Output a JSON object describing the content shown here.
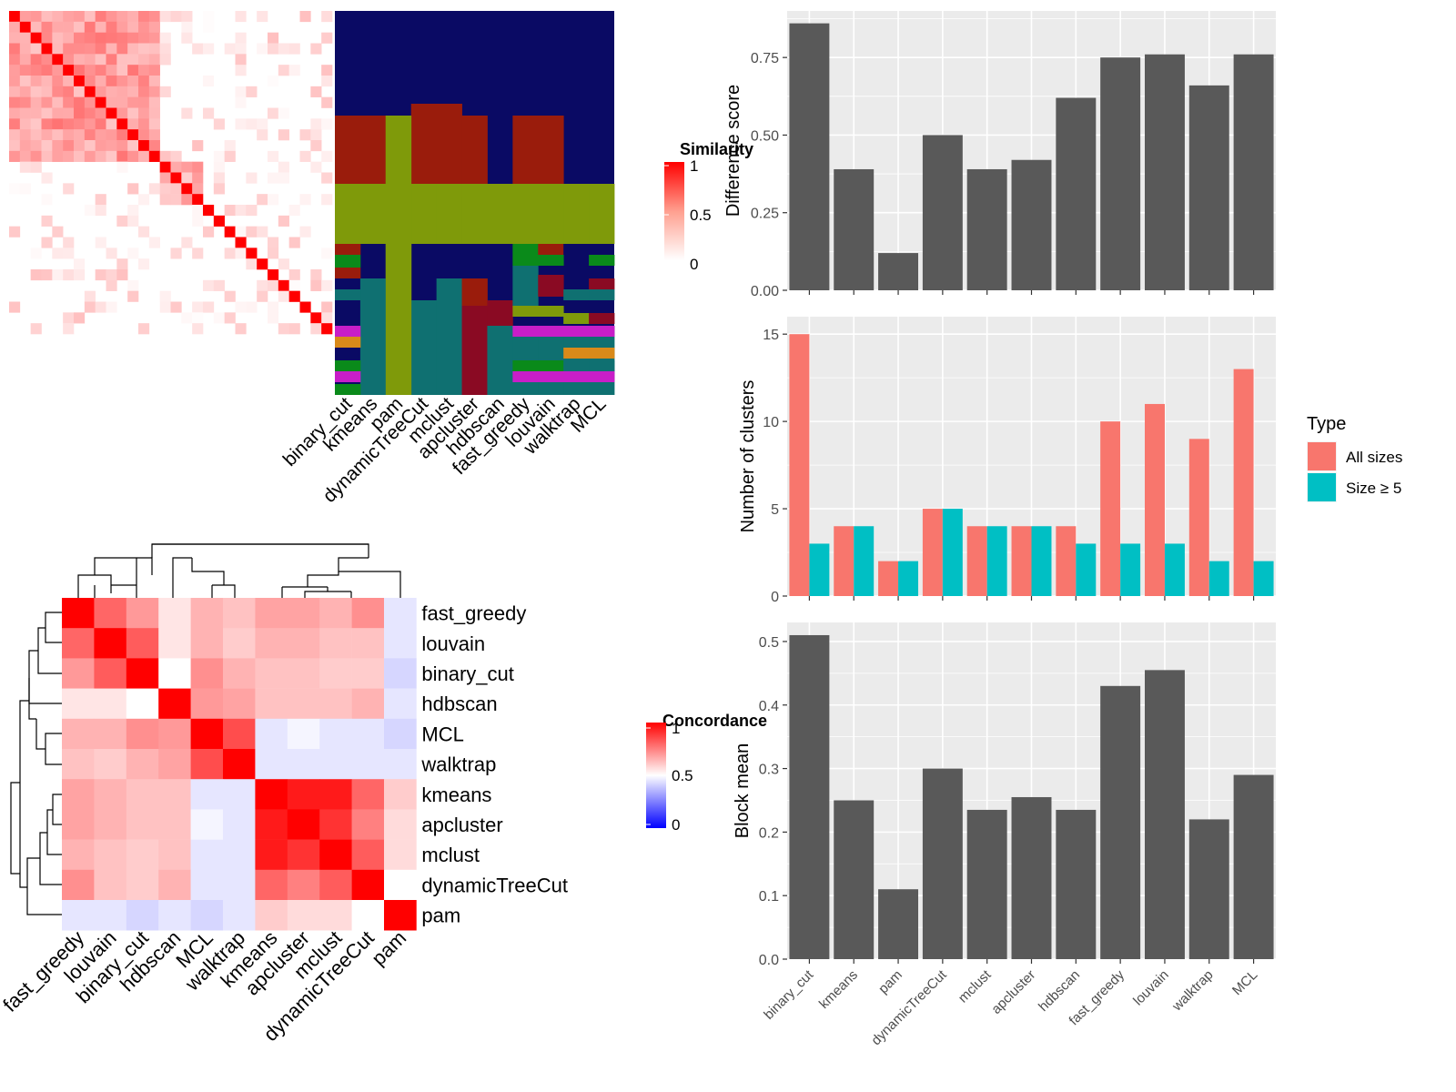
{
  "methods_order": [
    "binary_cut",
    "kmeans",
    "pam",
    "dynamicTreeCut",
    "mclust",
    "apcluster",
    "hdbscan",
    "fast_greedy",
    "louvain",
    "walktrap",
    "MCL"
  ],
  "similarity_heatmap": {
    "legend_title": "Similarity",
    "legend_ticks": [
      "1",
      "0.5",
      "0"
    ],
    "matrix_size": 30,
    "block_structure": [
      {
        "start": 0,
        "end": 13,
        "base": 0.55
      },
      {
        "start": 14,
        "end": 17,
        "base": 0.45
      }
    ]
  },
  "cluster_assignment_panel": {
    "method_labels": [
      "binary_cut",
      "kmeans",
      "pam",
      "dynamicTreeCut",
      "mclust",
      "apcluster",
      "hdbscan",
      "fast_greedy",
      "louvain",
      "walktrap",
      "MCL"
    ],
    "colors": {
      "navy": "#0a0a64",
      "darkred": "#9a1c0c",
      "olive": "#7f9a0a",
      "teal": "#0f7071",
      "green": "#0a8a1a",
      "magenta": "#c81ec8",
      "orange": "#d98a1a",
      "crimson": "#8a0a23"
    }
  },
  "concordance_heatmap": {
    "legend_title": "Concordance",
    "legend_ticks": [
      "1",
      "0.5",
      "0"
    ],
    "row_labels": [
      "fast_greedy",
      "louvain",
      "binary_cut",
      "hdbscan",
      "MCL",
      "walktrap",
      "kmeans",
      "apcluster",
      "mclust",
      "dynamicTreeCut",
      "pam"
    ],
    "col_labels": [
      "fast_greedy",
      "louvain",
      "binary_cut",
      "hdbscan",
      "MCL",
      "walktrap",
      "kmeans",
      "apcluster",
      "mclust",
      "dynamicTreeCut",
      "pam"
    ],
    "values": [
      [
        1.0,
        0.8,
        0.7,
        0.55,
        0.65,
        0.62,
        0.68,
        0.68,
        0.65,
        0.72,
        0.45
      ],
      [
        0.8,
        1.0,
        0.82,
        0.55,
        0.65,
        0.6,
        0.65,
        0.65,
        0.62,
        0.62,
        0.45
      ],
      [
        0.7,
        0.82,
        1.0,
        0.5,
        0.72,
        0.65,
        0.62,
        0.62,
        0.6,
        0.6,
        0.42
      ],
      [
        0.55,
        0.55,
        0.5,
        1.0,
        0.7,
        0.68,
        0.62,
        0.62,
        0.62,
        0.65,
        0.45
      ],
      [
        0.65,
        0.65,
        0.72,
        0.7,
        1.0,
        0.85,
        0.45,
        0.48,
        0.45,
        0.45,
        0.42
      ],
      [
        0.62,
        0.6,
        0.65,
        0.68,
        0.85,
        1.0,
        0.45,
        0.45,
        0.45,
        0.45,
        0.45
      ],
      [
        0.68,
        0.65,
        0.62,
        0.62,
        0.45,
        0.45,
        1.0,
        0.95,
        0.95,
        0.8,
        0.6
      ],
      [
        0.68,
        0.65,
        0.62,
        0.62,
        0.48,
        0.45,
        0.95,
        1.0,
        0.9,
        0.75,
        0.57
      ],
      [
        0.65,
        0.62,
        0.6,
        0.62,
        0.45,
        0.45,
        0.95,
        0.9,
        1.0,
        0.82,
        0.57
      ],
      [
        0.72,
        0.62,
        0.6,
        0.65,
        0.45,
        0.45,
        0.8,
        0.75,
        0.82,
        1.0,
        0.5
      ],
      [
        0.45,
        0.45,
        0.42,
        0.45,
        0.42,
        0.45,
        0.6,
        0.57,
        0.57,
        0.5,
        1.0
      ]
    ]
  },
  "chart_data": [
    {
      "type": "bar",
      "title": "",
      "xlabel": "",
      "ylabel": "Difference score",
      "categories": [
        "binary_cut",
        "kmeans",
        "pam",
        "dynamicTreeCut",
        "mclust",
        "apcluster",
        "hdbscan",
        "fast_greedy",
        "louvain",
        "walktrap",
        "MCL"
      ],
      "values": [
        0.86,
        0.39,
        0.12,
        0.5,
        0.39,
        0.42,
        0.62,
        0.75,
        0.76,
        0.66,
        0.76
      ],
      "ylim": [
        0,
        0.9
      ],
      "yticks": [
        0,
        0.25,
        0.5,
        0.75
      ],
      "ytick_labels": [
        "0.00",
        "0.25",
        "0.50",
        "0.75"
      ],
      "bar_color": "#595959",
      "grid": true
    },
    {
      "type": "bar",
      "title": "",
      "xlabel": "",
      "ylabel": "Number of clusters",
      "categories": [
        "binary_cut",
        "kmeans",
        "pam",
        "dynamicTreeCut",
        "mclust",
        "apcluster",
        "hdbscan",
        "fast_greedy",
        "louvain",
        "walktrap",
        "MCL"
      ],
      "series": [
        {
          "name": "All sizes",
          "color": "#f8766d",
          "values": [
            15,
            4,
            2,
            5,
            4,
            4,
            4,
            10,
            11,
            9,
            13
          ]
        },
        {
          "name": "Size ≥ 5",
          "color": "#00bfc4",
          "values": [
            3,
            4,
            2,
            5,
            4,
            4,
            3,
            3,
            3,
            2,
            2
          ]
        }
      ],
      "legend_title": "Type",
      "legend_position": "right",
      "ylim": [
        0,
        16
      ],
      "yticks": [
        0,
        5,
        10,
        15
      ],
      "ytick_labels": [
        "0",
        "5",
        "10",
        "15"
      ],
      "grid": true
    },
    {
      "type": "bar",
      "title": "",
      "xlabel": "",
      "ylabel": "Block mean",
      "categories": [
        "binary_cut",
        "kmeans",
        "pam",
        "dynamicTreeCut",
        "mclust",
        "apcluster",
        "hdbscan",
        "fast_greedy",
        "louvain",
        "walktrap",
        "MCL"
      ],
      "values": [
        0.51,
        0.25,
        0.11,
        0.3,
        0.235,
        0.255,
        0.235,
        0.43,
        0.455,
        0.22,
        0.29
      ],
      "ylim": [
        0,
        0.53
      ],
      "yticks": [
        0,
        0.1,
        0.2,
        0.3,
        0.4,
        0.5
      ],
      "ytick_labels": [
        "0.0",
        "0.1",
        "0.2",
        "0.3",
        "0.4",
        "0.5"
      ],
      "bar_color": "#595959",
      "grid": true
    }
  ]
}
